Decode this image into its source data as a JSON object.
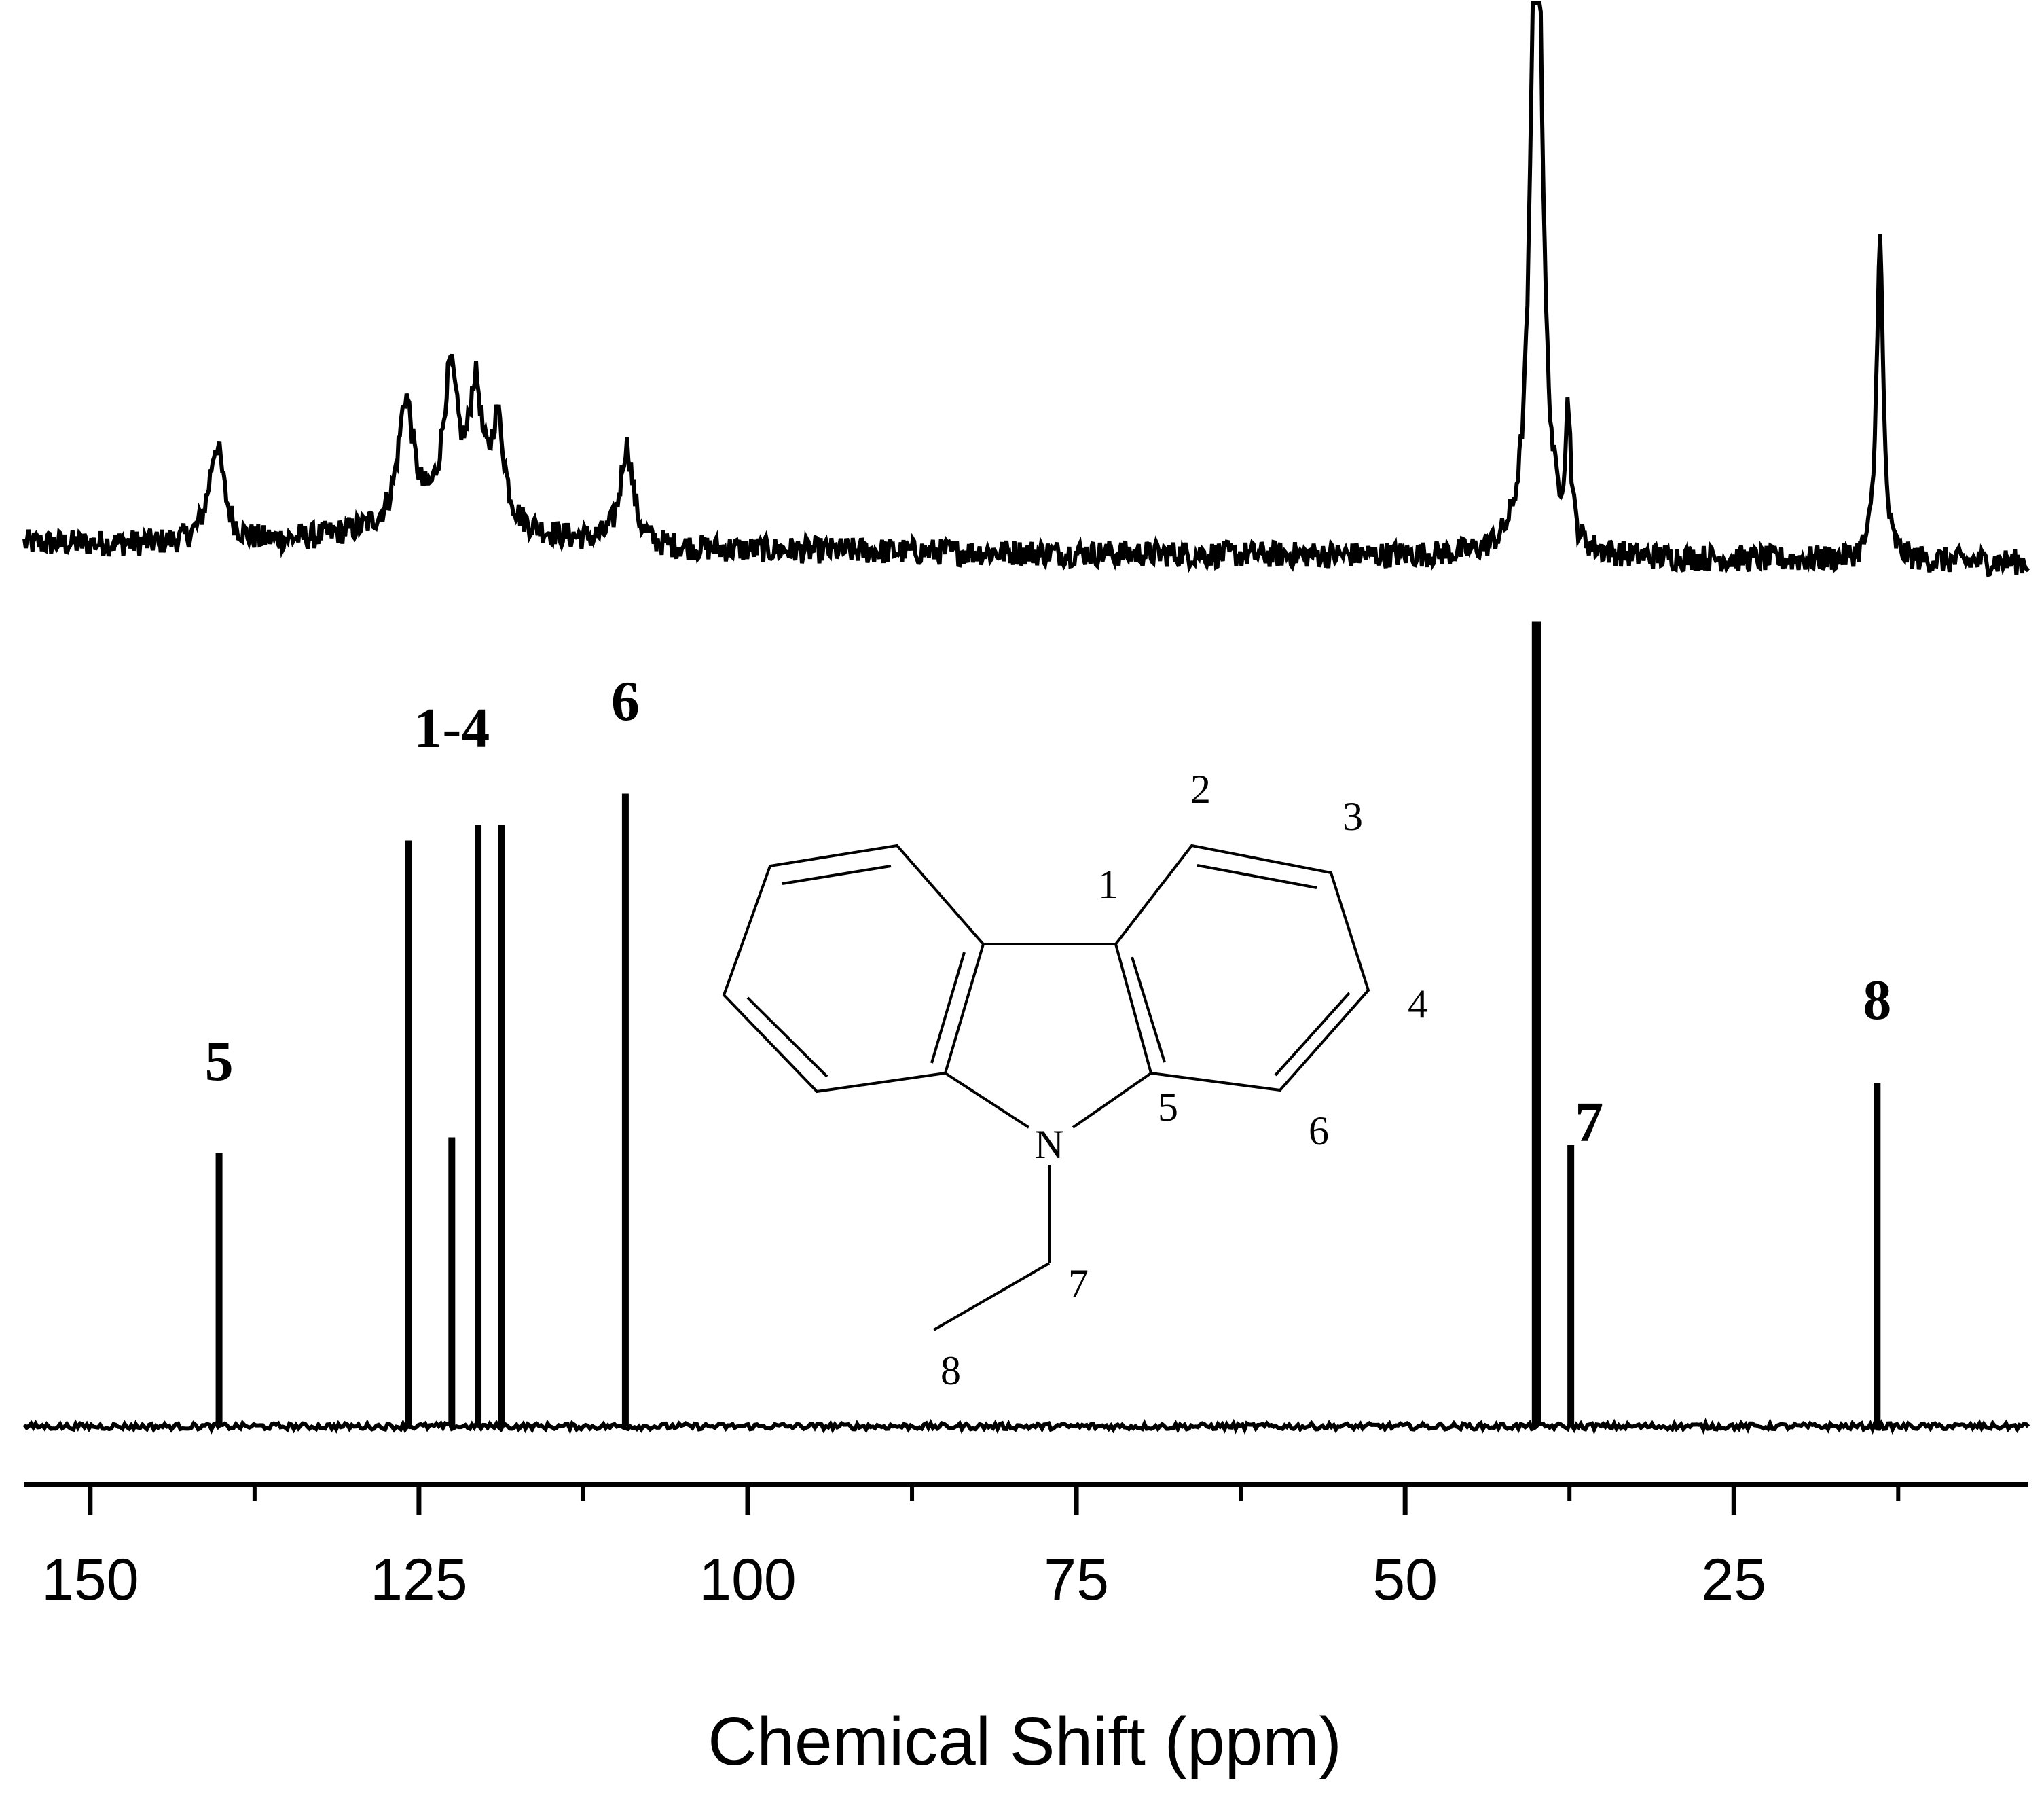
{
  "chart_data": {
    "type": "line",
    "xlabel": "Chemical Shift (ppm)",
    "xlim": [
      155,
      2.6
    ],
    "x_reversed": true,
    "x_ticks": [
      150,
      125,
      100,
      75,
      50,
      25
    ],
    "grid": false,
    "legend": "none",
    "series": [
      {
        "panel": "top",
        "description": "experimental spectrum (noisy)",
        "peaks": [
          {
            "x": 140.4,
            "height": 0.26,
            "width": 0.7
          },
          {
            "x": 126.0,
            "height": 0.33,
            "width": 0.7
          },
          {
            "x": 122.6,
            "height": 0.38,
            "width": 0.7
          },
          {
            "x": 120.7,
            "height": 0.33,
            "width": 0.6
          },
          {
            "x": 119.0,
            "height": 0.26,
            "width": 0.6
          },
          {
            "x": 109.2,
            "height": 0.26,
            "width": 0.6
          },
          {
            "x": 40.0,
            "height": 2.0,
            "width": 0.5
          },
          {
            "x": 37.6,
            "height": 0.33,
            "width": 0.25
          },
          {
            "x": 13.9,
            "height": 0.85,
            "width": 0.3
          }
        ]
      },
      {
        "panel": "bottom",
        "description": "simulated stick spectrum",
        "sticks": [
          {
            "x": 140.2,
            "height": 0.35
          },
          {
            "x": 125.8,
            "height": 0.75
          },
          {
            "x": 122.5,
            "height": 0.37
          },
          {
            "x": 120.5,
            "height": 0.77
          },
          {
            "x": 118.7,
            "height": 0.77
          },
          {
            "x": 109.3,
            "height": 0.81
          },
          {
            "x": 40.0,
            "height": 1.03
          },
          {
            "x": 37.4,
            "height": 0.36
          },
          {
            "x": 14.1,
            "height": 0.44
          }
        ]
      }
    ],
    "peak_labels": [
      {
        "text": "5",
        "x": 140.2
      },
      {
        "text": "1-4",
        "x": 122.5
      },
      {
        "text": "6",
        "x": 109.3
      },
      {
        "text": "7",
        "x": 36.0
      },
      {
        "text": "8",
        "x": 14.1
      }
    ],
    "molecule_labels": [
      "1",
      "2",
      "3",
      "4",
      "5",
      "6",
      "7",
      "8",
      "N"
    ]
  }
}
